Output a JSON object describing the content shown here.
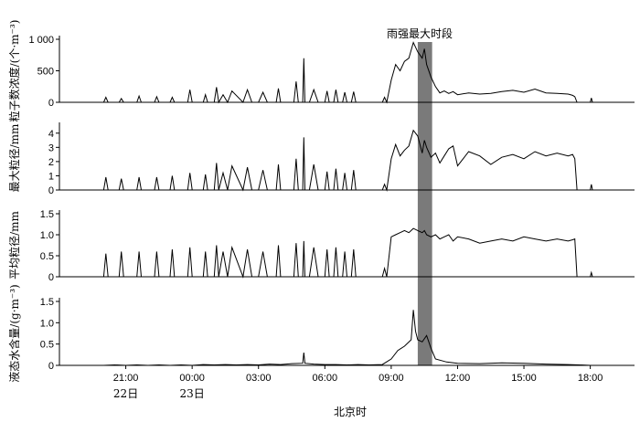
{
  "chart_data": {
    "type": "line",
    "title": "",
    "xlabel": "北京时",
    "x_ticks": [
      "21:00",
      "00:00",
      "03:00",
      "06:00",
      "09:00",
      "12:00",
      "15:00",
      "18:00"
    ],
    "x_ticks_hours": [
      21,
      24,
      27,
      30,
      33,
      36,
      39,
      42
    ],
    "date_labels": [
      {
        "text": "22日",
        "hour": 21
      },
      {
        "text": "23日",
        "hour": 24
      }
    ],
    "xlim_hours": [
      18.0,
      44.0
    ],
    "highlight": {
      "label": "雨强最大时段",
      "start_hour": 34.2,
      "end_hour": 34.85,
      "color": "#7a7a7a"
    },
    "panels": [
      {
        "ylabel": "粒子数浓度/(个·m⁻³)",
        "ylim": [
          0,
          1000
        ],
        "yticks": [
          0,
          500,
          1000
        ],
        "ytick_labels": [
          "0",
          "500",
          "1 000"
        ],
        "series": [
          {
            "x": [
              20.0,
              20.1,
              20.2,
              20.7,
              20.8,
              20.9,
              21.5,
              21.6,
              21.7,
              22.3,
              22.4,
              22.5,
              23.0,
              23.1,
              23.2,
              23.8,
              23.9,
              24.0,
              24.5,
              24.6,
              24.7,
              25.0,
              25.1,
              25.2,
              25.4,
              25.6,
              25.8,
              26.3,
              26.5,
              26.7,
              27.0,
              27.2,
              27.4,
              27.8,
              27.9,
              28.0,
              28.6,
              28.7,
              28.8,
              29.0,
              29.05,
              29.1,
              29.3,
              29.5,
              29.7,
              30.0,
              30.1,
              30.2,
              30.4,
              30.5,
              30.6,
              30.8,
              30.9,
              31.0,
              31.2,
              31.3,
              31.4,
              32.6,
              32.7,
              32.8,
              33.0,
              33.2,
              33.4,
              33.6,
              33.8,
              34.0,
              34.2,
              34.4,
              34.5,
              34.6,
              34.8,
              35.0,
              35.2,
              35.4,
              35.6,
              35.8,
              36.0,
              36.5,
              37.0,
              37.5,
              38.0,
              38.5,
              39.0,
              39.5,
              40.0,
              40.5,
              41.0,
              41.2,
              41.3,
              41.4,
              42.0,
              42.05,
              42.1
            ],
            "y": [
              0,
              80,
              0,
              0,
              60,
              0,
              0,
              100,
              0,
              0,
              90,
              0,
              0,
              80,
              0,
              0,
              200,
              0,
              0,
              120,
              0,
              0,
              240,
              0,
              120,
              0,
              180,
              0,
              200,
              0,
              0,
              160,
              0,
              0,
              220,
              0,
              0,
              330,
              0,
              0,
              700,
              0,
              0,
              200,
              0,
              0,
              180,
              0,
              0,
              200,
              0,
              0,
              160,
              0,
              0,
              170,
              0,
              0,
              80,
              0,
              350,
              600,
              500,
              650,
              700,
              950,
              800,
              700,
              850,
              600,
              400,
              250,
              150,
              180,
              140,
              170,
              120,
              150,
              130,
              140,
              170,
              190,
              160,
              210,
              150,
              140,
              130,
              110,
              90,
              0,
              0,
              70,
              0
            ]
          }
        ]
      },
      {
        "ylabel": "最大粒径/mm",
        "ylim": [
          0,
          4.5
        ],
        "yticks": [
          0,
          1,
          2,
          3,
          4
        ],
        "ytick_labels": [
          "0",
          "1",
          "2",
          "3",
          "4"
        ],
        "series": [
          {
            "x": [
              20.0,
              20.1,
              20.2,
              20.7,
              20.8,
              20.9,
              21.5,
              21.6,
              21.7,
              22.3,
              22.4,
              22.5,
              23.0,
              23.1,
              23.2,
              23.8,
              23.9,
              24.0,
              24.5,
              24.6,
              24.7,
              25.0,
              25.1,
              25.2,
              25.4,
              25.6,
              25.8,
              26.3,
              26.5,
              26.7,
              27.0,
              27.2,
              27.4,
              27.8,
              27.9,
              28.0,
              28.6,
              28.7,
              28.8,
              29.0,
              29.05,
              29.1,
              29.3,
              29.5,
              29.7,
              30.0,
              30.1,
              30.2,
              30.4,
              30.5,
              30.6,
              30.8,
              30.9,
              31.0,
              31.2,
              31.3,
              31.4,
              32.6,
              32.7,
              32.8,
              33.0,
              33.2,
              33.4,
              33.6,
              33.8,
              34.0,
              34.2,
              34.4,
              34.5,
              34.6,
              34.8,
              35.0,
              35.2,
              35.4,
              35.6,
              35.8,
              36.0,
              36.5,
              37.0,
              37.5,
              38.0,
              38.5,
              39.0,
              39.5,
              40.0,
              40.5,
              41.0,
              41.2,
              41.3,
              41.4,
              42.0,
              42.05,
              42.1
            ],
            "y": [
              0,
              0.9,
              0,
              0,
              0.8,
              0,
              0,
              0.9,
              0,
              0,
              0.9,
              0,
              0,
              1.0,
              0,
              0,
              1.2,
              0,
              0,
              1.1,
              0,
              0,
              1.9,
              0,
              1.2,
              0,
              1.7,
              0,
              1.6,
              0,
              0,
              1.4,
              0,
              0,
              1.8,
              0,
              0,
              2.2,
              0,
              0,
              3.7,
              0,
              0,
              1.8,
              0,
              0,
              1.3,
              0,
              0,
              1.5,
              0,
              0,
              1.2,
              0,
              0,
              1.4,
              0,
              0,
              0.4,
              0,
              2.2,
              3.2,
              2.4,
              2.8,
              3.1,
              4.2,
              3.8,
              2.6,
              3.5,
              3.0,
              2.3,
              2.6,
              1.9,
              2.4,
              2.9,
              3.1,
              1.7,
              2.7,
              2.4,
              1.8,
              2.3,
              2.5,
              2.2,
              2.7,
              2.4,
              2.6,
              2.4,
              2.5,
              2.2,
              0,
              0,
              0.4,
              0
            ]
          }
        ]
      },
      {
        "ylabel": "平均粒径/mm",
        "ylim": [
          0,
          1.5
        ],
        "yticks": [
          0,
          0.5,
          1.0,
          1.5
        ],
        "ytick_labels": [
          "0",
          "0.5",
          "1.0",
          "1.5"
        ],
        "series": [
          {
            "x": [
              20.0,
              20.1,
              20.2,
              20.7,
              20.8,
              20.9,
              21.5,
              21.6,
              21.7,
              22.3,
              22.4,
              22.5,
              23.0,
              23.1,
              23.2,
              23.8,
              23.9,
              24.0,
              24.5,
              24.6,
              24.7,
              25.0,
              25.1,
              25.2,
              25.4,
              25.6,
              25.8,
              26.3,
              26.5,
              26.7,
              27.0,
              27.2,
              27.4,
              27.8,
              27.9,
              28.0,
              28.6,
              28.7,
              28.8,
              29.0,
              29.05,
              29.1,
              29.3,
              29.5,
              29.7,
              30.0,
              30.1,
              30.2,
              30.4,
              30.5,
              30.6,
              30.8,
              30.9,
              31.0,
              31.2,
              31.3,
              31.4,
              32.6,
              32.7,
              32.8,
              33.0,
              33.2,
              33.4,
              33.6,
              33.8,
              34.0,
              34.2,
              34.4,
              34.5,
              34.6,
              34.8,
              35.0,
              35.2,
              35.4,
              35.6,
              35.8,
              36.0,
              36.5,
              37.0,
              37.5,
              38.0,
              38.5,
              39.0,
              39.5,
              40.0,
              40.5,
              41.0,
              41.2,
              41.3,
              41.4,
              42.0,
              42.05,
              42.1
            ],
            "y": [
              0,
              0.55,
              0,
              0,
              0.6,
              0,
              0,
              0.6,
              0,
              0,
              0.6,
              0,
              0,
              0.65,
              0,
              0,
              0.7,
              0,
              0,
              0.6,
              0,
              0,
              0.75,
              0,
              0.6,
              0,
              0.7,
              0,
              0.65,
              0,
              0,
              0.6,
              0,
              0,
              0.75,
              0,
              0,
              0.8,
              0,
              0,
              0.85,
              0,
              0,
              0.7,
              0,
              0,
              0.65,
              0,
              0,
              0.7,
              0,
              0,
              0.6,
              0,
              0,
              0.65,
              0,
              0,
              0.2,
              0,
              0.95,
              1.0,
              1.05,
              1.1,
              1.05,
              1.15,
              1.1,
              1.05,
              1.1,
              1.0,
              0.95,
              1.0,
              0.9,
              0.95,
              1.0,
              0.85,
              0.95,
              0.9,
              0.8,
              0.85,
              0.9,
              0.85,
              0.95,
              0.9,
              0.85,
              0.9,
              0.85,
              0.88,
              0.9,
              0,
              0,
              0.1,
              0
            ]
          }
        ]
      },
      {
        "ylabel": "液态水含量/(g·m⁻³)",
        "ylim": [
          0,
          1.5
        ],
        "yticks": [
          0,
          0.5,
          1.0,
          1.5
        ],
        "ytick_labels": [
          "0",
          "0.5",
          "1.0",
          "1.5"
        ],
        "series": [
          {
            "x": [
              20.0,
              20.5,
              21.0,
              21.5,
              22.0,
              22.5,
              23.0,
              23.5,
              24.0,
              24.5,
              25.0,
              25.5,
              26.0,
              26.5,
              27.0,
              27.5,
              28.0,
              28.5,
              29.0,
              29.05,
              29.1,
              29.5,
              30.0,
              30.5,
              31.0,
              31.5,
              32.0,
              32.6,
              33.0,
              33.3,
              33.6,
              33.9,
              34.0,
              34.1,
              34.2,
              34.4,
              34.6,
              34.8,
              35.0,
              35.5,
              36.0,
              37.0,
              38.0,
              39.0,
              40.0,
              41.0,
              41.5,
              42.0
            ],
            "y": [
              0,
              0.01,
              0,
              0.01,
              0,
              0.01,
              0,
              0.01,
              0,
              0.02,
              0.01,
              0.02,
              0.01,
              0.02,
              0.01,
              0.03,
              0.02,
              0.04,
              0.05,
              0.3,
              0.05,
              0.03,
              0.02,
              0.02,
              0.01,
              0.02,
              0.01,
              0.02,
              0.15,
              0.35,
              0.45,
              0.6,
              1.3,
              0.8,
              0.6,
              0.55,
              0.7,
              0.4,
              0.15,
              0.08,
              0.05,
              0.04,
              0.06,
              0.05,
              0.03,
              0.02,
              0.01,
              0
            ]
          }
        ]
      }
    ]
  }
}
